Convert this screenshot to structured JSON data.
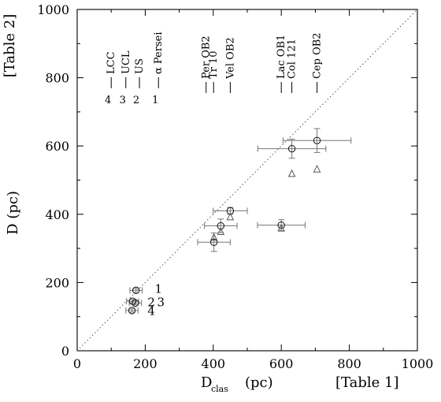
{
  "chart_data": {
    "type": "scatter",
    "title": "",
    "xlabel_main": "D",
    "xlabel_sub": "clas",
    "xlabel_unit": "(pc)",
    "ylabel": "D (pc)",
    "top_left_note": "[Table 2]",
    "bottom_right_note": "[Table 1]",
    "xlim": [
      0,
      1000
    ],
    "ylim": [
      0,
      1000
    ],
    "x_ticks": [
      0,
      200,
      400,
      600,
      800,
      1000
    ],
    "y_ticks": [
      0,
      200,
      400,
      600,
      800,
      1000
    ],
    "x_tick_labels": [
      "0",
      "200",
      "400",
      "600",
      "800",
      "1000"
    ],
    "y_tick_labels": [
      "0",
      "200",
      "400",
      "600",
      "800",
      "1000"
    ],
    "reference_line": {
      "from": [
        0,
        0
      ],
      "to": [
        1000,
        1000
      ],
      "style": "dotted"
    },
    "points": [
      {
        "x": 173,
        "y": 177,
        "xerr": 18,
        "yerr": 6
      },
      {
        "x": 163,
        "y": 145,
        "xerr": 18,
        "yerr": 5
      },
      {
        "x": 171,
        "y": 140,
        "xerr": 18,
        "yerr": 5
      },
      {
        "x": 161,
        "y": 118,
        "xerr": 18,
        "yerr": 5
      },
      {
        "x": 402,
        "y": 318,
        "xerr": 48,
        "yerr": 27
      },
      {
        "x": 422,
        "y": 366,
        "xerr": 48,
        "yerr": 20
      },
      {
        "x": 450,
        "y": 410,
        "xerr": 50,
        "yerr": 10
      },
      {
        "x": 600,
        "y": 368,
        "xerr": 70,
        "yerr": 16
      },
      {
        "x": 631,
        "y": 592,
        "xerr": 100,
        "yerr": 28
      },
      {
        "x": 705,
        "y": 616,
        "xerr": 100,
        "yerr": 35
      }
    ],
    "triangles": [
      {
        "x": 402,
        "y": 333
      },
      {
        "x": 422,
        "y": 350
      },
      {
        "x": 450,
        "y": 393
      },
      {
        "x": 600,
        "y": 360
      },
      {
        "x": 631,
        "y": 520
      },
      {
        "x": 705,
        "y": 533
      }
    ],
    "group_labels_left": [
      {
        "x": 100,
        "text": "LCC"
      },
      {
        "x": 143,
        "text": "UCL"
      },
      {
        "x": 183,
        "text": "US"
      },
      {
        "x": 239,
        "text": "α Persei"
      }
    ],
    "group_number_labels_left": [
      {
        "x": 100,
        "text": "4"
      },
      {
        "x": 143,
        "text": "3"
      },
      {
        "x": 183,
        "text": "2"
      },
      {
        "x": 239,
        "text": "1"
      }
    ],
    "group_labels_center": [
      {
        "x": 379,
        "text": "Per OB2"
      },
      {
        "x": 401,
        "text": "Tr 10"
      },
      {
        "x": 450,
        "text": "Vel OB2"
      }
    ],
    "group_labels_right": [
      {
        "x": 600,
        "text": "Lac OB1"
      },
      {
        "x": 631,
        "text": "Col 121"
      },
      {
        "x": 705,
        "text": "Cep OB2"
      }
    ],
    "point_labels": [
      {
        "x": 228,
        "y": 181,
        "text": "1"
      },
      {
        "x": 207,
        "y": 142,
        "text": "2"
      },
      {
        "x": 235,
        "y": 142,
        "text": "3"
      },
      {
        "x": 207,
        "y": 117,
        "text": "4"
      }
    ]
  }
}
